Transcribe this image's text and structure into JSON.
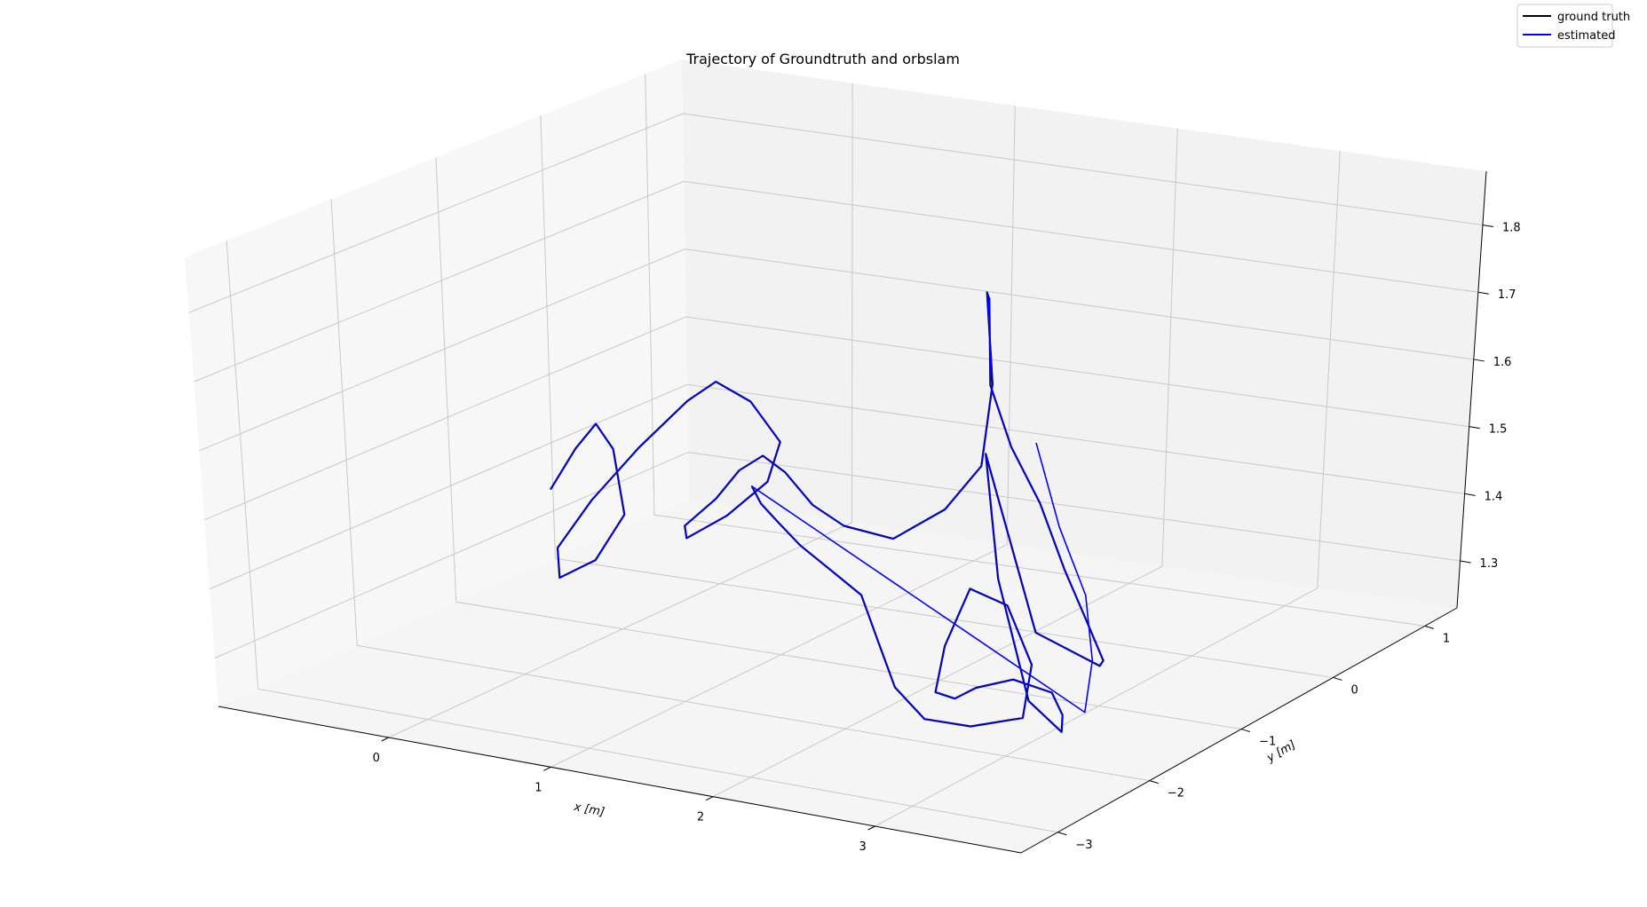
{
  "chart_data": {
    "type": "line",
    "title": "Trajectory of Groundtruth and orbslam",
    "xlabel": "x [m]",
    "ylabel": "y [m]",
    "zlabel": "",
    "xlim": [
      -1.05,
      3.9
    ],
    "ylim": [
      -3.4,
      1.35
    ],
    "zlim": [
      1.23,
      1.88
    ],
    "x_ticks": [
      "0",
      "1",
      "2",
      "3"
    ],
    "y_ticks": [
      "−3",
      "−2",
      "−1",
      "0",
      "1"
    ],
    "z_ticks": [
      "1.3",
      "1.4",
      "1.5",
      "1.6",
      "1.7",
      "1.8"
    ],
    "grid": true,
    "projection": "3d",
    "legend": {
      "placement": "top-right"
    },
    "colors": {
      "ground_truth": "#000000",
      "estimated": "#0000ff",
      "pane": "#f2f2f2",
      "grid": "#c8c8c8"
    },
    "series": [
      {
        "name": "ground truth",
        "color": "#000000",
        "points": [
          [
            -0.55,
            -0.8,
            1.4
          ],
          [
            -0.35,
            -0.85,
            1.47
          ],
          [
            -0.15,
            -0.95,
            1.52
          ],
          [
            0.05,
            -1.1,
            1.5
          ],
          [
            0.2,
            -1.25,
            1.42
          ],
          [
            0.1,
            -1.4,
            1.36
          ],
          [
            -0.1,
            -1.45,
            1.33
          ],
          [
            -0.2,
            -1.3,
            1.36
          ],
          [
            -0.1,
            -1.1,
            1.42
          ],
          [
            0.15,
            -1.0,
            1.5
          ],
          [
            0.4,
            -0.9,
            1.57
          ],
          [
            0.55,
            -0.85,
            1.6
          ],
          [
            0.7,
            -0.75,
            1.57
          ],
          [
            0.75,
            -0.55,
            1.5
          ],
          [
            0.6,
            -0.45,
            1.43
          ],
          [
            0.4,
            -0.55,
            1.38
          ],
          [
            0.3,
            -0.8,
            1.36
          ],
          [
            0.45,
            -1.05,
            1.4
          ],
          [
            0.75,
            -1.2,
            1.46
          ],
          [
            1.0,
            -1.35,
            1.52
          ],
          [
            1.25,
            -1.5,
            1.56
          ],
          [
            1.45,
            -1.6,
            1.55
          ],
          [
            1.55,
            -1.5,
            1.5
          ],
          [
            1.55,
            -1.2,
            1.45
          ],
          [
            1.7,
            -0.95,
            1.42
          ],
          [
            2.0,
            -0.9,
            1.47
          ],
          [
            2.3,
            -1.0,
            1.55
          ],
          [
            2.45,
            -1.1,
            1.68
          ],
          [
            2.5,
            -1.2,
            1.82
          ],
          [
            2.58,
            -1.3,
            1.82
          ],
          [
            2.6,
            -1.35,
            1.7
          ],
          [
            2.75,
            -1.4,
            1.62
          ],
          [
            2.95,
            -1.45,
            1.55
          ],
          [
            3.15,
            -1.55,
            1.47
          ],
          [
            3.4,
            -1.75,
            1.42
          ],
          [
            3.65,
            -2.0,
            1.39
          ],
          [
            3.75,
            -2.2,
            1.4
          ],
          [
            3.55,
            -2.5,
            1.46
          ],
          [
            3.45,
            -2.7,
            1.72
          ],
          [
            3.5,
            -2.75,
            1.55
          ],
          [
            3.6,
            -2.7,
            1.38
          ],
          [
            3.7,
            -2.55,
            1.33
          ],
          [
            3.62,
            -2.4,
            1.34
          ],
          [
            3.5,
            -2.3,
            1.36
          ],
          [
            3.2,
            -2.2,
            1.36
          ],
          [
            2.9,
            -2.1,
            1.33
          ],
          [
            2.7,
            -2.0,
            1.3
          ],
          [
            2.55,
            -1.95,
            1.3
          ],
          [
            2.5,
            -1.75,
            1.35
          ],
          [
            2.55,
            -1.55,
            1.42
          ],
          [
            2.75,
            -1.5,
            1.4
          ],
          [
            2.95,
            -1.6,
            1.33
          ],
          [
            3.0,
            -1.8,
            1.27
          ],
          [
            2.7,
            -1.85,
            1.25
          ],
          [
            2.35,
            -1.75,
            1.24
          ],
          [
            2.05,
            -1.55,
            1.26
          ],
          [
            1.8,
            -1.3,
            1.3
          ],
          [
            1.55,
            -1.05,
            1.34
          ],
          [
            1.3,
            -0.95,
            1.36
          ],
          [
            1.05,
            -0.85,
            1.38
          ],
          [
            0.85,
            -0.75,
            1.4
          ],
          [
            0.65,
            -0.6,
            1.41
          ],
          [
            0.5,
            -0.45,
            1.42
          ]
        ]
      },
      {
        "name": "estimated",
        "color": "#0000ff",
        "points": [
          [
            -0.55,
            -0.8,
            1.4
          ],
          [
            -0.35,
            -0.85,
            1.47
          ],
          [
            -0.15,
            -0.95,
            1.52
          ],
          [
            0.05,
            -1.1,
            1.5
          ],
          [
            0.2,
            -1.25,
            1.42
          ],
          [
            0.1,
            -1.4,
            1.36
          ],
          [
            -0.1,
            -1.45,
            1.33
          ],
          [
            -0.2,
            -1.3,
            1.36
          ],
          [
            -0.1,
            -1.1,
            1.42
          ],
          [
            0.15,
            -1.0,
            1.5
          ],
          [
            0.4,
            -0.9,
            1.57
          ],
          [
            0.55,
            -0.85,
            1.6
          ],
          [
            0.7,
            -0.75,
            1.57
          ],
          [
            0.75,
            -0.55,
            1.5
          ],
          [
            0.6,
            -0.45,
            1.43
          ],
          [
            0.4,
            -0.55,
            1.38
          ],
          [
            0.3,
            -0.8,
            1.36
          ],
          [
            0.45,
            -1.05,
            1.4
          ],
          [
            0.75,
            -1.2,
            1.46
          ],
          [
            1.0,
            -1.35,
            1.52
          ],
          [
            1.25,
            -1.5,
            1.56
          ],
          [
            1.45,
            -1.6,
            1.55
          ],
          [
            1.55,
            -1.5,
            1.5
          ],
          [
            1.55,
            -1.2,
            1.45
          ],
          [
            1.7,
            -0.95,
            1.42
          ],
          [
            2.0,
            -0.9,
            1.47
          ],
          [
            2.3,
            -1.0,
            1.55
          ],
          [
            2.45,
            -1.1,
            1.68
          ],
          [
            2.5,
            -1.2,
            1.82
          ],
          [
            2.58,
            -1.3,
            1.82
          ],
          [
            2.6,
            -1.35,
            1.7
          ],
          [
            2.75,
            -1.4,
            1.62
          ],
          [
            2.95,
            -1.45,
            1.55
          ],
          [
            3.15,
            -1.55,
            1.47
          ],
          [
            3.4,
            -1.75,
            1.42
          ],
          [
            3.65,
            -2.0,
            1.39
          ],
          [
            3.75,
            -2.2,
            1.4
          ],
          [
            3.55,
            -2.5,
            1.46
          ],
          [
            3.45,
            -2.7,
            1.72
          ],
          [
            3.5,
            -2.75,
            1.55
          ],
          [
            3.6,
            -2.7,
            1.38
          ],
          [
            3.7,
            -2.55,
            1.33
          ],
          [
            3.62,
            -2.4,
            1.34
          ],
          [
            3.5,
            -2.3,
            1.36
          ],
          [
            3.2,
            -2.2,
            1.36
          ],
          [
            2.9,
            -2.1,
            1.33
          ],
          [
            2.7,
            -2.0,
            1.3
          ],
          [
            2.55,
            -1.95,
            1.3
          ],
          [
            2.5,
            -1.75,
            1.35
          ],
          [
            2.55,
            -1.55,
            1.42
          ],
          [
            2.75,
            -1.5,
            1.4
          ],
          [
            2.95,
            -1.6,
            1.33
          ],
          [
            3.0,
            -1.8,
            1.27
          ],
          [
            2.7,
            -1.85,
            1.25
          ],
          [
            2.35,
            -1.75,
            1.24
          ],
          [
            2.05,
            -1.55,
            1.26
          ],
          [
            1.8,
            -1.3,
            1.3
          ],
          [
            1.55,
            -1.05,
            1.34
          ],
          [
            1.3,
            -0.95,
            1.36
          ],
          [
            1.05,
            -0.85,
            1.38
          ],
          [
            0.85,
            -0.75,
            1.4
          ],
          [
            0.65,
            -0.6,
            1.41
          ],
          [
            0.5,
            -0.45,
            1.42
          ],
          [
            3.7,
            -2.3,
            1.34
          ],
          [
            3.8,
            -2.35,
            1.42
          ],
          [
            3.85,
            -2.45,
            1.52
          ],
          [
            3.78,
            -2.55,
            1.62
          ],
          [
            3.72,
            -2.62,
            1.74
          ]
        ]
      }
    ]
  }
}
